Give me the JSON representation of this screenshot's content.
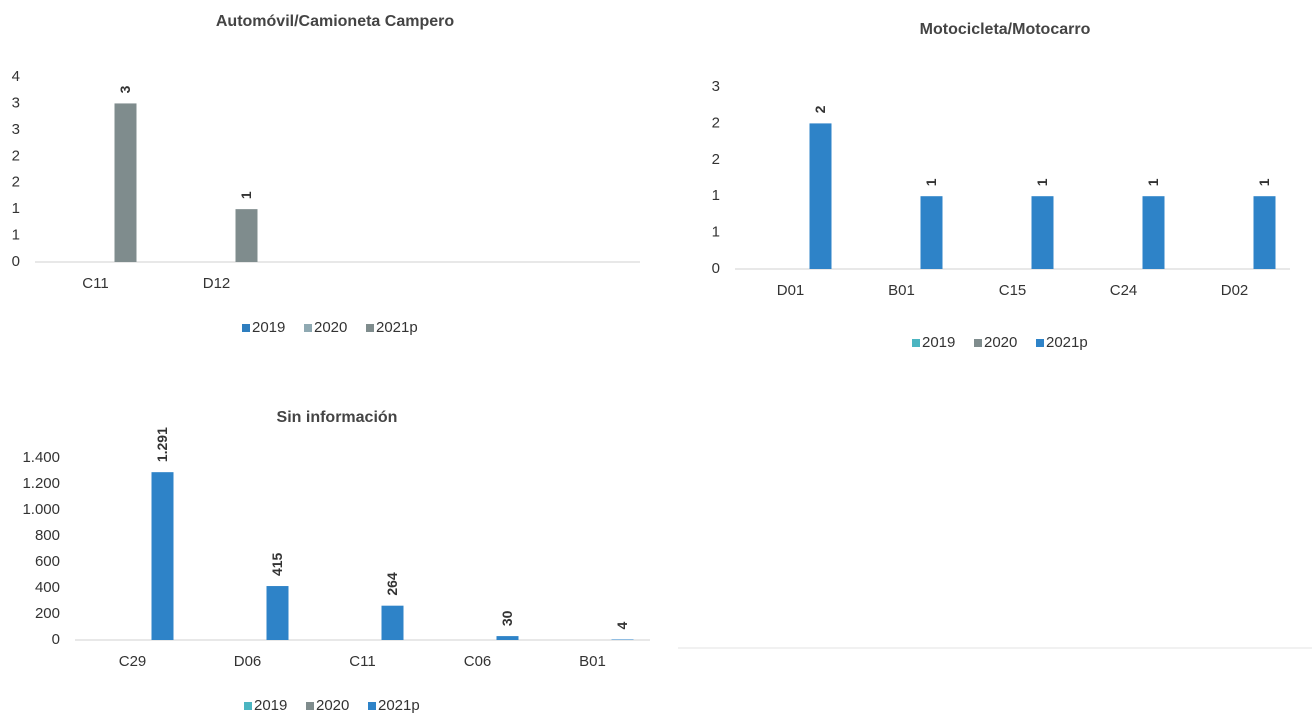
{
  "chart_data": [
    {
      "type": "bar",
      "title": "Automóvil/Camioneta Campero",
      "categories": [
        "C11",
        "D12",
        null,
        null,
        null
      ],
      "series": [
        {
          "name": "2019",
          "color": "#2e7ebf",
          "values": [
            null,
            null,
            null,
            null,
            null
          ]
        },
        {
          "name": "2020",
          "color": "#8fa9b2",
          "values": [
            null,
            null,
            null,
            null,
            null
          ]
        },
        {
          "name": "2021p",
          "color": "#7f8c8d",
          "values": [
            3,
            1,
            null,
            null,
            null
          ]
        }
      ],
      "ylim": [
        0,
        3.5
      ],
      "yticks": [
        0,
        {
          "value": 0.5,
          "label": "1"
        },
        1,
        {
          "value": 1.5,
          "label": "2"
        },
        2,
        {
          "value": 2.5,
          "label": "3"
        },
        3,
        {
          "value": 3.5,
          "label": "4"
        }
      ],
      "legend": "bottom"
    },
    {
      "type": "bar",
      "title": "Motocicleta/Motocarro",
      "categories": [
        "D01",
        "B01",
        "C15",
        "C24",
        "D02"
      ],
      "series": [
        {
          "name": "2019",
          "color": "#4bb5c1",
          "values": [
            null,
            null,
            null,
            null,
            null
          ]
        },
        {
          "name": "2020",
          "color": "#7f8c8d",
          "values": [
            null,
            null,
            null,
            null,
            null
          ]
        },
        {
          "name": "2021p",
          "color": "#2e83c8",
          "values": [
            2,
            1,
            1,
            1,
            1
          ]
        }
      ],
      "ylim": [
        0,
        2.5
      ],
      "yticks": [
        0,
        {
          "value": 0.5,
          "label": "1"
        },
        1,
        {
          "value": 1.5,
          "label": "2"
        },
        2,
        {
          "value": 2.5,
          "label": "3"
        }
      ],
      "legend": "bottom"
    },
    {
      "type": "bar",
      "title": "Sin información",
      "categories": [
        "C29",
        "D06",
        "C11",
        "C06",
        "B01"
      ],
      "series": [
        {
          "name": "2019",
          "color": "#4bb5c1",
          "values": [
            null,
            null,
            null,
            null,
            null
          ]
        },
        {
          "name": "2020",
          "color": "#7f8c8d",
          "values": [
            null,
            null,
            null,
            null,
            null
          ]
        },
        {
          "name": "2021p",
          "color": "#2e83c8",
          "values": [
            1291,
            415,
            264,
            30,
            4
          ],
          "value_labels": [
            "1.291",
            "415",
            "264",
            "30",
            "4"
          ]
        }
      ],
      "ylim": [
        0,
        1400
      ],
      "yticks": [
        0,
        200,
        400,
        600,
        800,
        {
          "value": 1000,
          "label": "1.000"
        },
        {
          "value": 1200,
          "label": "1.200"
        },
        {
          "value": 1400,
          "label": "1.400"
        }
      ],
      "legend": "bottom"
    }
  ]
}
